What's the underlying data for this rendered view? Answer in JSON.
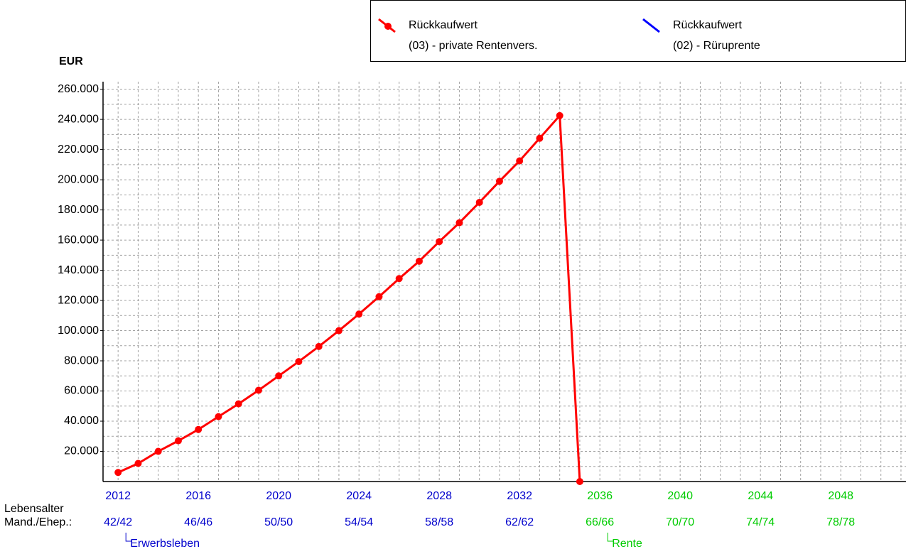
{
  "chart_data": {
    "type": "line",
    "y_label": "EUR",
    "x": [
      2012,
      2013,
      2014,
      2015,
      2016,
      2017,
      2018,
      2019,
      2020,
      2021,
      2022,
      2023,
      2024,
      2025,
      2026,
      2027,
      2028,
      2029,
      2030,
      2031,
      2032,
      2033,
      2034,
      2035
    ],
    "series": [
      {
        "name": "Rückkaufwert",
        "description": "(03) - private Rentenvers.",
        "color": "#ff0000",
        "marker": true,
        "values": [
          6000,
          12000,
          20000,
          27000,
          34500,
          43000,
          51500,
          60500,
          70000,
          79500,
          89500,
          100000,
          111000,
          122500,
          134500,
          146000,
          159000,
          171500,
          185000,
          199000,
          212500,
          227500,
          242500,
          0
        ]
      },
      {
        "name": "Rückkaufwert",
        "description": "(02) - Rüruprente",
        "color": "#0000ff",
        "marker": false,
        "values": [
          null,
          null,
          null,
          null,
          null,
          null,
          null,
          null,
          null,
          null,
          null,
          null,
          null,
          null,
          null,
          null,
          null,
          null,
          null,
          null,
          null,
          null,
          null,
          null
        ]
      }
    ],
    "xlim": [
      2011.25,
      2051.25
    ],
    "xticks": [
      2012,
      2016,
      2020,
      2024,
      2028,
      2032,
      2036,
      2040,
      2044,
      2048
    ],
    "age_row_labels": [
      "Lebensalter",
      "Mand./Ehep.:"
    ],
    "age_labels": [
      "42/42",
      "46/46",
      "50/50",
      "54/54",
      "58/58",
      "62/62",
      "66/66",
      "70/70",
      "74/74",
      "78/78"
    ],
    "phases": [
      {
        "label": "Erwerbsleben",
        "start": 2012,
        "color": "#0000cc"
      },
      {
        "label": "Rente",
        "start": 2036,
        "color": "#00cc00"
      }
    ],
    "xgrid": [
      2012,
      2013,
      2014,
      2015,
      2016,
      2017,
      2018,
      2019,
      2020,
      2021,
      2022,
      2023,
      2024,
      2025,
      2026,
      2027,
      2028,
      2029,
      2030,
      2031,
      2032,
      2033,
      2034,
      2035,
      2036,
      2037,
      2038,
      2039,
      2040,
      2041,
      2042,
      2043,
      2044,
      2045,
      2046,
      2047,
      2048,
      2049,
      2050,
      2051
    ],
    "ylim": [
      0,
      265000
    ],
    "yticks": [
      {
        "value": 20000,
        "label": "20.000"
      },
      {
        "value": 40000,
        "label": "40.000"
      },
      {
        "value": 60000,
        "label": "60.000"
      },
      {
        "value": 80000,
        "label": "80.000"
      },
      {
        "value": 100000,
        "label": "100.000"
      },
      {
        "value": 120000,
        "label": "120.000"
      },
      {
        "value": 140000,
        "label": "140.000"
      },
      {
        "value": 160000,
        "label": "160.000"
      },
      {
        "value": 180000,
        "label": "180.000"
      },
      {
        "value": 200000,
        "label": "200.000"
      },
      {
        "value": 220000,
        "label": "220.000"
      },
      {
        "value": 240000,
        "label": "240.000"
      },
      {
        "value": 260000,
        "label": "260.000"
      }
    ],
    "ygrid": [
      10000,
      20000,
      30000,
      40000,
      50000,
      60000,
      70000,
      80000,
      90000,
      100000,
      110000,
      120000,
      130000,
      140000,
      150000,
      160000,
      170000,
      180000,
      190000,
      200000,
      210000,
      220000,
      230000,
      240000,
      250000,
      260000
    ],
    "grid": true
  }
}
